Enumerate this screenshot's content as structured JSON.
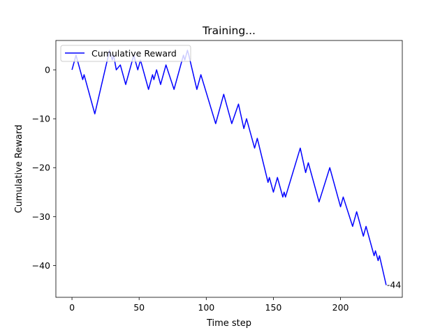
{
  "chart_data": {
    "type": "line",
    "title": "Training...",
    "xlabel": "Time step",
    "ylabel": "Cumulative Reward",
    "xlim": [
      -12,
      246
    ],
    "ylim": [
      -46.5,
      6
    ],
    "xticks": [
      0,
      50,
      100,
      150,
      200
    ],
    "yticks": [
      0,
      -10,
      -20,
      -30,
      -40
    ],
    "grid": false,
    "legend_position": "top-left",
    "series": [
      {
        "name": "Cumulative Reward",
        "color": "#0000ff",
        "x": [
          0,
          3,
          8,
          9,
          17,
          28,
          30,
          31,
          33,
          36,
          37,
          40,
          46,
          49,
          51,
          57,
          60,
          61,
          63,
          66,
          70,
          76,
          83,
          84,
          86,
          87,
          93,
          96,
          107,
          113,
          119,
          124,
          128,
          130,
          136,
          138,
          146,
          147,
          148,
          150,
          153,
          157,
          158,
          159,
          170,
          174,
          176,
          184,
          192,
          200,
          202,
          209,
          212,
          217,
          219,
          225,
          226,
          227,
          228,
          229,
          234
        ],
        "y": [
          0,
          3,
          -2,
          -1,
          -9,
          4,
          2,
          3,
          0,
          1,
          0,
          -3,
          3,
          0,
          2,
          -4,
          -1,
          -2,
          0,
          -3,
          1,
          -4,
          3,
          2,
          4,
          3,
          -4,
          -1,
          -11,
          -5,
          -11,
          -7,
          -12,
          -10,
          -16,
          -14,
          -23,
          -22,
          -23,
          -25,
          -22,
          -26,
          -25,
          -26,
          -16,
          -21,
          -19,
          -27,
          -20,
          -28,
          -26,
          -32,
          -29,
          -34,
          -32,
          -38,
          -37,
          -38,
          -39,
          -38,
          -44
        ]
      }
    ],
    "annotations": [
      {
        "text": "-44",
        "x": 234,
        "y": -44
      }
    ]
  },
  "axis_color": "#000000",
  "background": "#ffffff"
}
